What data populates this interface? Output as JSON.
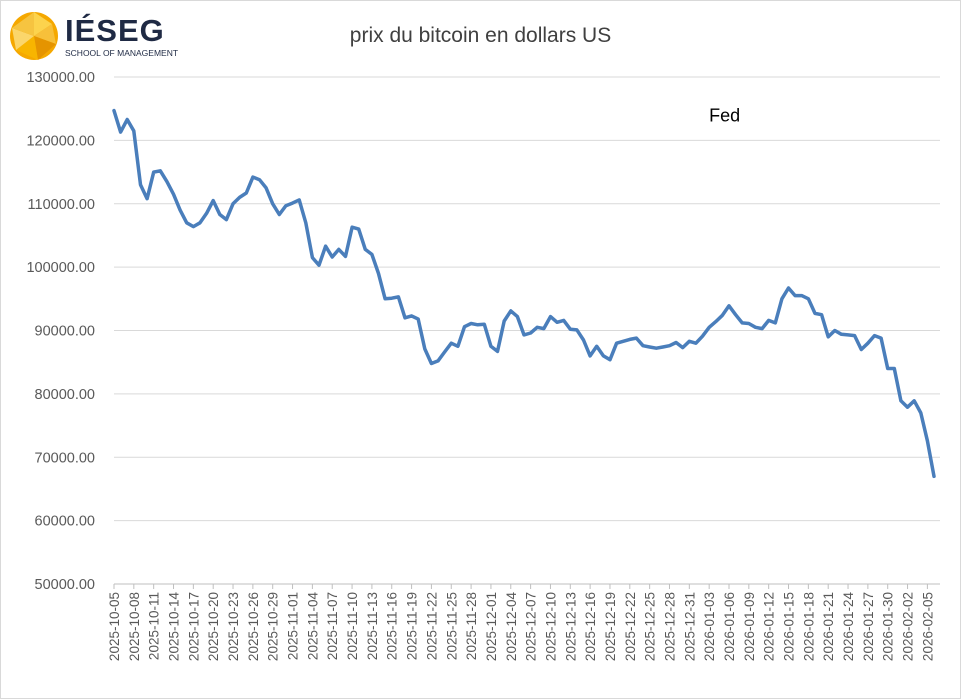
{
  "logo": {
    "name": "IÉSEG",
    "subtitle": "SCHOOL OF MANAGEMENT",
    "colors": {
      "primary": "#f5a800",
      "secondary": "#fcd34d",
      "text": "#1f2a44"
    }
  },
  "chart_data": {
    "type": "line",
    "title": "prix du bitcoin en dollars US",
    "xlabel": "",
    "ylabel": "",
    "ylim": [
      50000,
      130000
    ],
    "y_ticks": [
      "50000.00",
      "60000.00",
      "70000.00",
      "80000.00",
      "90000.00",
      "100000.00",
      "110000.00",
      "120000.00",
      "130000.00"
    ],
    "x_tick_labels": [
      "2025-10-05",
      "2025-10-08",
      "2025-10-11",
      "2025-10-14",
      "2025-10-17",
      "2025-10-20",
      "2025-10-23",
      "2025-10-26",
      "2025-10-29",
      "2025-11-01",
      "2025-11-04",
      "2025-11-07",
      "2025-11-10",
      "2025-11-13",
      "2025-11-16",
      "2025-11-19",
      "2025-11-22",
      "2025-11-25",
      "2025-11-28",
      "2025-12-01",
      "2025-12-04",
      "2025-12-07",
      "2025-12-10",
      "2025-12-13",
      "2025-12-16",
      "2025-12-19",
      "2025-12-22",
      "2025-12-25",
      "2025-12-28",
      "2025-12-31",
      "2026-01-03",
      "2026-01-06",
      "2026-01-09",
      "2026-01-12",
      "2026-01-15",
      "2026-01-18",
      "2026-01-21",
      "2026-01-24",
      "2026-01-27",
      "2026-01-30",
      "2026-02-02",
      "2026-02-05"
    ],
    "grid": true,
    "line_color": "#4a7ebb",
    "annotations": [
      {
        "text": "Fed",
        "x": "2026-01-03",
        "y": 123000
      }
    ],
    "series": [
      {
        "name": "prix du bitcoin",
        "values": [
          124700,
          121300,
          123300,
          121500,
          113000,
          110800,
          115000,
          115200,
          113500,
          111500,
          109000,
          107000,
          106400,
          107000,
          108500,
          110500,
          108300,
          107500,
          110000,
          111000,
          111700,
          114200,
          113800,
          112500,
          110000,
          108300,
          109700,
          110100,
          110600,
          107000,
          101500,
          100300,
          103300,
          101600,
          102800,
          101700,
          106300,
          106000,
          102800,
          102000,
          99000,
          95000,
          95100,
          95300,
          92000,
          92300,
          91800,
          87100,
          84800,
          85200,
          86600,
          88000,
          87500,
          90600,
          91100,
          90900,
          91000,
          87500,
          86700,
          91500,
          93100,
          92200,
          89300,
          89600,
          90500,
          90300,
          92200,
          91300,
          91600,
          90200,
          90100,
          88500,
          86000,
          87500,
          86000,
          85400,
          88000,
          88300,
          88600,
          88800,
          87600,
          87400,
          87200,
          87400,
          87600,
          88100,
          87300,
          88300,
          88000,
          89100,
          90500,
          91400,
          92400,
          93900,
          92500,
          91200,
          91100,
          90500,
          90300,
          91600,
          91200,
          95000,
          96700,
          95500,
          95500,
          95000,
          92700,
          92500,
          89000,
          90000,
          89400,
          89300,
          89200,
          87000,
          88000,
          89200,
          88800,
          84000,
          84000,
          78900,
          77900,
          78900,
          77000,
          72600,
          67000
        ]
      }
    ]
  }
}
